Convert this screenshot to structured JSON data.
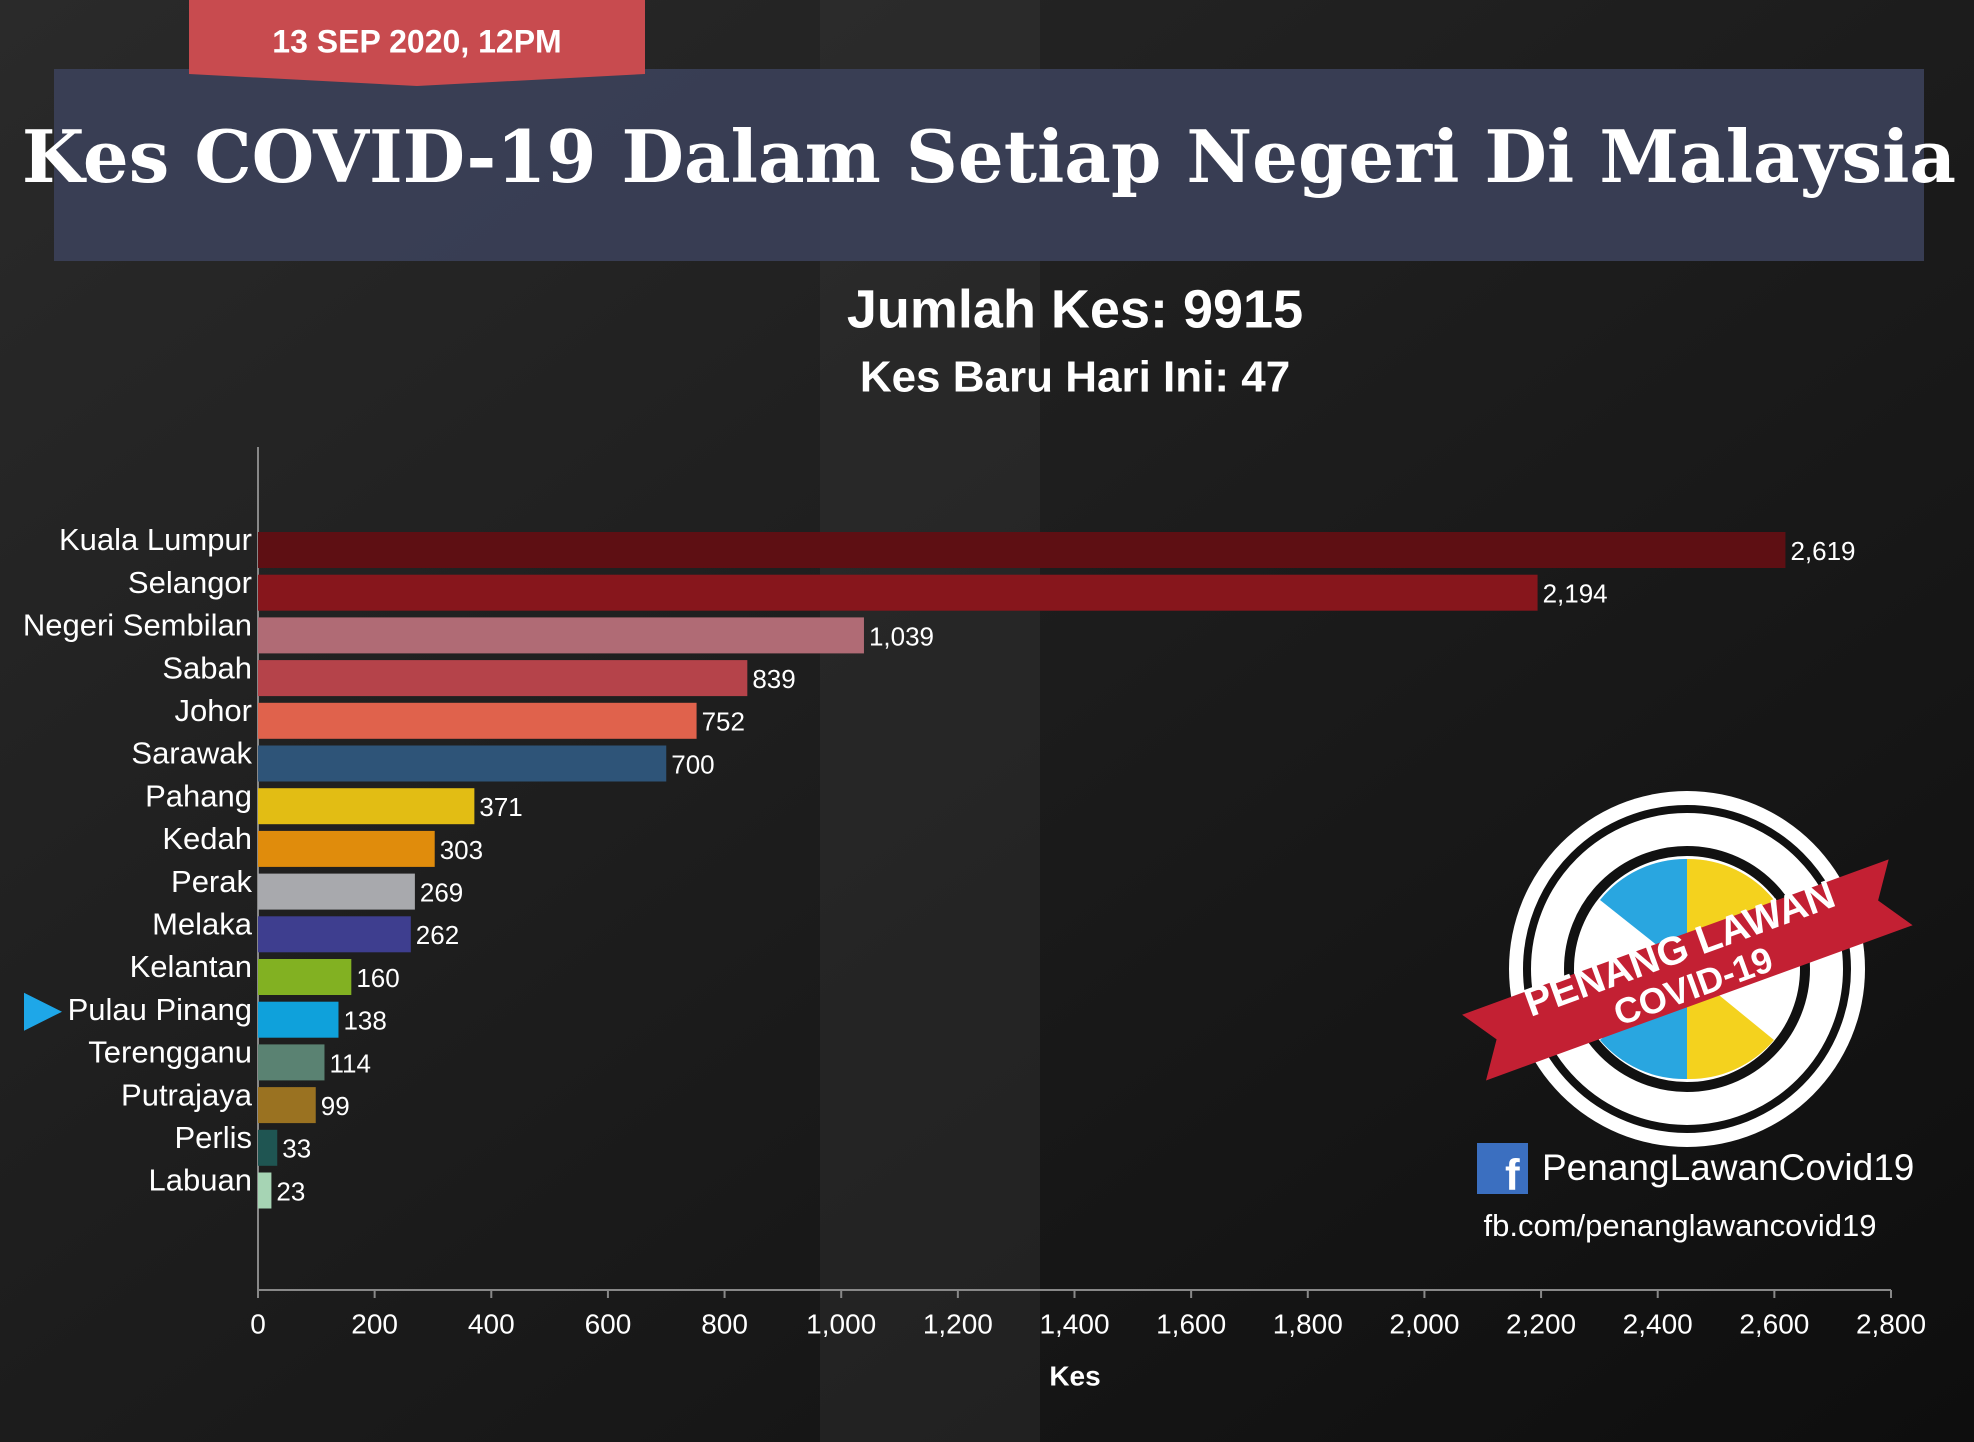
{
  "chart_data": {
    "type": "bar",
    "date": "13 SEP 2020, 12PM",
    "title": "Kes COVID-19 Dalam Setiap Negeri Di Malaysia",
    "subtitle": "Jumlah Kes: 9915",
    "subtitle2": "Kes Baru Hari Ini: 47",
    "x_label": "Kes",
    "categories": [
      "Kuala Lumpur",
      "Selangor",
      "Negeri Sembilan",
      "Sabah",
      "Johor",
      "Sarawak",
      "Pahang",
      "Kedah",
      "Perak",
      "Melaka",
      "Kelantan",
      "Pulau Pinang",
      "Terengganu",
      "Putrajaya",
      "Perlis",
      "Labuan"
    ],
    "values": [
      2619,
      2194,
      1039,
      839,
      752,
      700,
      371,
      303,
      269,
      262,
      160,
      138,
      114,
      99,
      33,
      23
    ],
    "value_labels": [
      "2,619",
      "2,194",
      "1,039",
      "839",
      "752",
      "700",
      "371",
      "303",
      "269",
      "262",
      "160",
      "138",
      "114",
      "99",
      "33",
      "23"
    ],
    "colors": [
      "#5e0f13",
      "#87161c",
      "#b06b75",
      "#b5434a",
      "#e0624c",
      "#2e5478",
      "#e2bd14",
      "#e08c0c",
      "#a8a9ad",
      "#3e3e8f",
      "#82b122",
      "#0fa1db",
      "#5a8272",
      "#9a7221",
      "#1f5552",
      "#a6d4b4"
    ],
    "highlight": "Pulau Pinang",
    "xlim": [
      0,
      2800
    ],
    "xticks": [
      0,
      200,
      400,
      600,
      800,
      {
        "value": 1000,
        "label": "1,000"
      },
      {
        "value": 1200,
        "label": "1,200"
      },
      {
        "value": 1400,
        "label": "1,400"
      },
      {
        "value": 1600,
        "label": "1,600"
      },
      {
        "value": 1800,
        "label": "1,800"
      },
      {
        "value": 2000,
        "label": "2,000"
      },
      {
        "value": 2200,
        "label": "2,200"
      },
      {
        "value": 2400,
        "label": "2,400"
      },
      {
        "value": 2600,
        "label": "2,600"
      },
      {
        "value": 2800,
        "label": "2,800"
      }
    ],
    "logo_line1": "PENANG LAWAN",
    "logo_line2": "COVID-19",
    "facebook_name": "PenangLawanCovid19",
    "facebook_url": "fb.com/penanglawancovid19"
  }
}
